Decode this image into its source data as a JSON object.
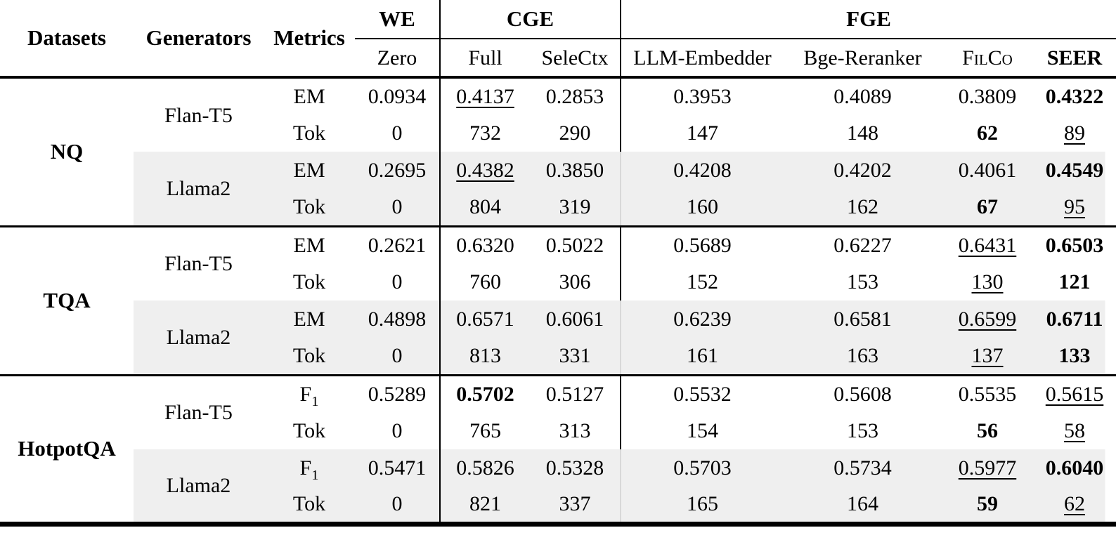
{
  "meta": {
    "shade_color": "#efefef",
    "rule_color": "#000000",
    "faint_rule_color": "#d8d8d8"
  },
  "header": {
    "datasets": "Datasets",
    "generators": "Generators",
    "metrics": "Metrics",
    "groups": [
      {
        "label": "WE",
        "span": 1
      },
      {
        "label": "CGE",
        "span": 2
      },
      {
        "label": "FGE",
        "span": 4
      }
    ],
    "subcols": [
      {
        "label": "Zero"
      },
      {
        "label": "Full"
      },
      {
        "label": "SeleCtx"
      },
      {
        "label": "LLM-Embedder"
      },
      {
        "label": "Bge-Reranker"
      },
      {
        "label": "FilCo",
        "smallcaps": true
      },
      {
        "label": "SEER",
        "bold": true
      }
    ]
  },
  "body": {
    "sections": [
      {
        "dataset": "NQ",
        "generators": [
          {
            "name": "Flan-T5",
            "shaded": false,
            "rows": [
              {
                "m": "EM",
                "ms": "",
                "cells": [
                  {
                    "v": "0.0934",
                    "s": ""
                  },
                  {
                    "v": "0.4137",
                    "s": "u"
                  },
                  {
                    "v": "0.2853",
                    "s": ""
                  },
                  {
                    "v": "0.3953",
                    "s": ""
                  },
                  {
                    "v": "0.4089",
                    "s": ""
                  },
                  {
                    "v": "0.3809",
                    "s": ""
                  },
                  {
                    "v": "0.4322",
                    "s": "b"
                  }
                ]
              },
              {
                "m": "Tok",
                "ms": "",
                "cells": [
                  {
                    "v": "0",
                    "s": ""
                  },
                  {
                    "v": "732",
                    "s": ""
                  },
                  {
                    "v": "290",
                    "s": ""
                  },
                  {
                    "v": "147",
                    "s": ""
                  },
                  {
                    "v": "148",
                    "s": ""
                  },
                  {
                    "v": "62",
                    "s": "b"
                  },
                  {
                    "v": "89",
                    "s": "u"
                  }
                ]
              }
            ]
          },
          {
            "name": "Llama2",
            "shaded": true,
            "rows": [
              {
                "m": "EM",
                "ms": "",
                "cells": [
                  {
                    "v": "0.2695",
                    "s": ""
                  },
                  {
                    "v": "0.4382",
                    "s": "u"
                  },
                  {
                    "v": "0.3850",
                    "s": ""
                  },
                  {
                    "v": "0.4208",
                    "s": ""
                  },
                  {
                    "v": "0.4202",
                    "s": ""
                  },
                  {
                    "v": "0.4061",
                    "s": ""
                  },
                  {
                    "v": "0.4549",
                    "s": "b"
                  }
                ]
              },
              {
                "m": "Tok",
                "ms": "",
                "cells": [
                  {
                    "v": "0",
                    "s": ""
                  },
                  {
                    "v": "804",
                    "s": ""
                  },
                  {
                    "v": "319",
                    "s": ""
                  },
                  {
                    "v": "160",
                    "s": ""
                  },
                  {
                    "v": "162",
                    "s": ""
                  },
                  {
                    "v": "67",
                    "s": "b"
                  },
                  {
                    "v": "95",
                    "s": "u"
                  }
                ]
              }
            ]
          }
        ]
      },
      {
        "dataset": "TQA",
        "generators": [
          {
            "name": "Flan-T5",
            "shaded": false,
            "rows": [
              {
                "m": "EM",
                "ms": "",
                "cells": [
                  {
                    "v": "0.2621",
                    "s": ""
                  },
                  {
                    "v": "0.6320",
                    "s": ""
                  },
                  {
                    "v": "0.5022",
                    "s": ""
                  },
                  {
                    "v": "0.5689",
                    "s": ""
                  },
                  {
                    "v": "0.6227",
                    "s": ""
                  },
                  {
                    "v": "0.6431",
                    "s": "u"
                  },
                  {
                    "v": "0.6503",
                    "s": "b"
                  }
                ]
              },
              {
                "m": "Tok",
                "ms": "",
                "cells": [
                  {
                    "v": "0",
                    "s": ""
                  },
                  {
                    "v": "760",
                    "s": ""
                  },
                  {
                    "v": "306",
                    "s": ""
                  },
                  {
                    "v": "152",
                    "s": ""
                  },
                  {
                    "v": "153",
                    "s": ""
                  },
                  {
                    "v": "130",
                    "s": "u"
                  },
                  {
                    "v": "121",
                    "s": "b"
                  }
                ]
              }
            ]
          },
          {
            "name": "Llama2",
            "shaded": true,
            "rows": [
              {
                "m": "EM",
                "ms": "",
                "cells": [
                  {
                    "v": "0.4898",
                    "s": ""
                  },
                  {
                    "v": "0.6571",
                    "s": ""
                  },
                  {
                    "v": "0.6061",
                    "s": ""
                  },
                  {
                    "v": "0.6239",
                    "s": ""
                  },
                  {
                    "v": "0.6581",
                    "s": ""
                  },
                  {
                    "v": "0.6599",
                    "s": "u"
                  },
                  {
                    "v": "0.6711",
                    "s": "b"
                  }
                ]
              },
              {
                "m": "Tok",
                "ms": "",
                "cells": [
                  {
                    "v": "0",
                    "s": ""
                  },
                  {
                    "v": "813",
                    "s": ""
                  },
                  {
                    "v": "331",
                    "s": ""
                  },
                  {
                    "v": "161",
                    "s": ""
                  },
                  {
                    "v": "163",
                    "s": ""
                  },
                  {
                    "v": "137",
                    "s": "u"
                  },
                  {
                    "v": "133",
                    "s": "b"
                  }
                ]
              }
            ]
          }
        ]
      },
      {
        "dataset": "HotpotQA",
        "generators": [
          {
            "name": "Flan-T5",
            "shaded": false,
            "rows": [
              {
                "m": "F",
                "ms": "1",
                "cells": [
                  {
                    "v": "0.5289",
                    "s": ""
                  },
                  {
                    "v": "0.5702",
                    "s": "b"
                  },
                  {
                    "v": "0.5127",
                    "s": ""
                  },
                  {
                    "v": "0.5532",
                    "s": ""
                  },
                  {
                    "v": "0.5608",
                    "s": ""
                  },
                  {
                    "v": "0.5535",
                    "s": ""
                  },
                  {
                    "v": "0.5615",
                    "s": "u"
                  }
                ]
              },
              {
                "m": "Tok",
                "ms": "",
                "cells": [
                  {
                    "v": "0",
                    "s": ""
                  },
                  {
                    "v": "765",
                    "s": ""
                  },
                  {
                    "v": "313",
                    "s": ""
                  },
                  {
                    "v": "154",
                    "s": ""
                  },
                  {
                    "v": "153",
                    "s": ""
                  },
                  {
                    "v": "56",
                    "s": "b"
                  },
                  {
                    "v": "58",
                    "s": "u"
                  }
                ]
              }
            ]
          },
          {
            "name": "Llama2",
            "shaded": true,
            "rows": [
              {
                "m": "F",
                "ms": "1",
                "cells": [
                  {
                    "v": "0.5471",
                    "s": ""
                  },
                  {
                    "v": "0.5826",
                    "s": ""
                  },
                  {
                    "v": "0.5328",
                    "s": ""
                  },
                  {
                    "v": "0.5703",
                    "s": ""
                  },
                  {
                    "v": "0.5734",
                    "s": ""
                  },
                  {
                    "v": "0.5977",
                    "s": "u"
                  },
                  {
                    "v": "0.6040",
                    "s": "b"
                  }
                ]
              },
              {
                "m": "Tok",
                "ms": "",
                "cells": [
                  {
                    "v": "0",
                    "s": ""
                  },
                  {
                    "v": "821",
                    "s": ""
                  },
                  {
                    "v": "337",
                    "s": ""
                  },
                  {
                    "v": "165",
                    "s": ""
                  },
                  {
                    "v": "164",
                    "s": ""
                  },
                  {
                    "v": "59",
                    "s": "b"
                  },
                  {
                    "v": "62",
                    "s": "u"
                  }
                ]
              }
            ]
          }
        ]
      }
    ]
  }
}
